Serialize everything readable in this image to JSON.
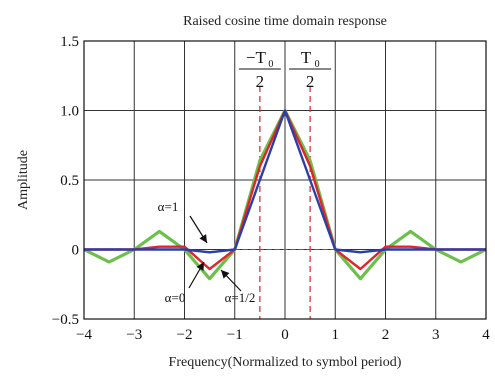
{
  "chart_data": {
    "type": "line",
    "title": "Raised cosine time domain response",
    "xlabel": "Frequency(Normalized to symbol period)",
    "ylabel": "Amplitude",
    "xlim": [
      -4,
      4
    ],
    "ylim": [
      -0.5,
      1.5
    ],
    "x_ticks": [
      "−4",
      "−3",
      "−2",
      "−1",
      "0",
      "1",
      "2",
      "3",
      "4"
    ],
    "y_ticks": [
      "1.5",
      "1.0",
      "0.5",
      "0",
      "−0.5"
    ],
    "grid": true,
    "colors": {
      "alpha_0": "#6cc04a",
      "alpha_half": "#e0242a",
      "alpha_1": "#2b3fa8",
      "marker": "#e0242a"
    },
    "series": [
      {
        "name": "α=0",
        "x": [
          -4,
          -3.5,
          -3,
          -2.5,
          -2,
          -1.5,
          -1,
          -0.5,
          0,
          0.5,
          1,
          1.5,
          2,
          2.5,
          3,
          3.5,
          4
        ],
        "values": [
          0,
          -0.09,
          0,
          0.13,
          0,
          -0.21,
          0,
          0.64,
          1.0,
          0.64,
          0,
          -0.21,
          0,
          0.13,
          0,
          -0.09,
          0
        ]
      },
      {
        "name": "α=1/2",
        "x": [
          -4,
          -3.5,
          -3,
          -2.5,
          -2,
          -1.5,
          -1,
          -0.5,
          0,
          0.5,
          1,
          1.5,
          2,
          2.5,
          3,
          3.5,
          4
        ],
        "values": [
          0,
          0,
          0,
          0.02,
          0.02,
          -0.14,
          0,
          0.6,
          1.0,
          0.6,
          0,
          -0.14,
          0.02,
          0.02,
          0,
          0,
          0
        ]
      },
      {
        "name": "α=1",
        "x": [
          -4,
          -3.5,
          -3,
          -2.5,
          -2,
          -1.5,
          -1,
          -0.5,
          0,
          0.5,
          1,
          1.5,
          2,
          2.5,
          3,
          3.5,
          4
        ],
        "values": [
          0,
          0,
          0,
          0,
          0,
          -0.02,
          0,
          0.5,
          1.0,
          0.5,
          0,
          -0.02,
          0,
          0,
          0,
          0,
          0
        ]
      }
    ],
    "markers": [
      {
        "x": -0.5,
        "label_num": "−T",
        "label_sub": "0",
        "label_den": "2"
      },
      {
        "x": 0.5,
        "label_num": "T",
        "label_sub": "0",
        "label_den": "2"
      }
    ],
    "annotations": [
      {
        "label": "α=1",
        "series": "α=1"
      },
      {
        "label": "α=0",
        "series": "α=0"
      },
      {
        "label": "α=1/2",
        "series": "α=1/2"
      }
    ]
  }
}
